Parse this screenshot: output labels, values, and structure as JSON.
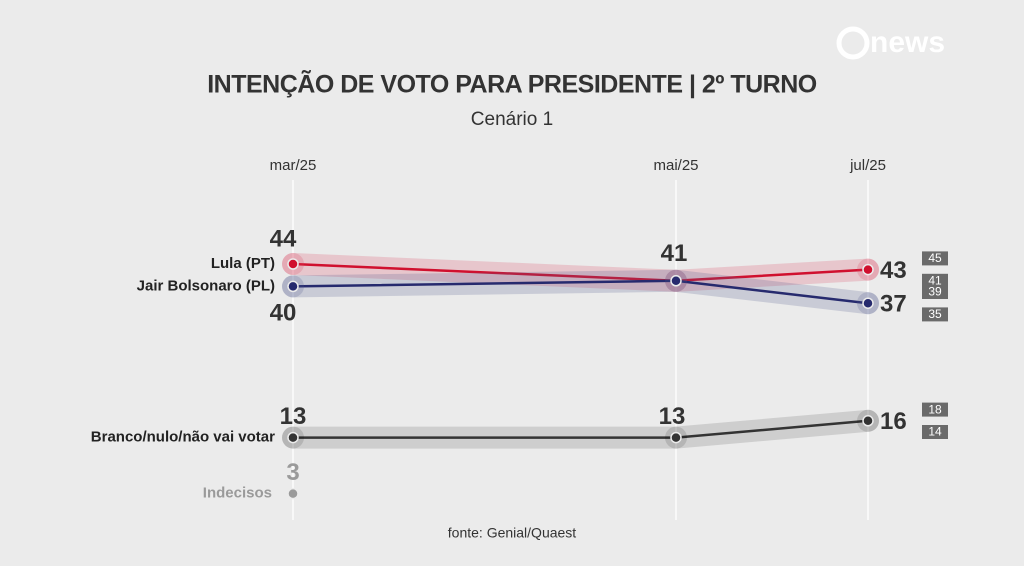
{
  "brand": "news",
  "chart_data": {
    "type": "line",
    "title": "INTENÇÃO DE VOTO PARA PRESIDENTE | 2º TURNO",
    "subtitle": "Cenário 1",
    "source": "fonte: Genial/Quaest",
    "categories": [
      "mar/25",
      "mai/25",
      "jul/25"
    ],
    "series": [
      {
        "name": "Lula (PT)",
        "color": "#d0102e",
        "values": [
          44,
          41,
          43
        ],
        "range": {
          "upper": 45,
          "lower": 41
        }
      },
      {
        "name": "Jair Bolsonaro (PL)",
        "color": "#262a6e",
        "values": [
          40,
          41,
          37
        ],
        "range": {
          "upper": 39,
          "lower": 35
        }
      },
      {
        "name": "Branco/nulo/não vai votar",
        "color": "#333333",
        "values": [
          13,
          13,
          16
        ],
        "range": {
          "upper": 18,
          "lower": 14
        }
      },
      {
        "name": "Indecisos",
        "color": "#9a9a9a",
        "values": [
          3,
          null,
          null
        ]
      }
    ]
  }
}
